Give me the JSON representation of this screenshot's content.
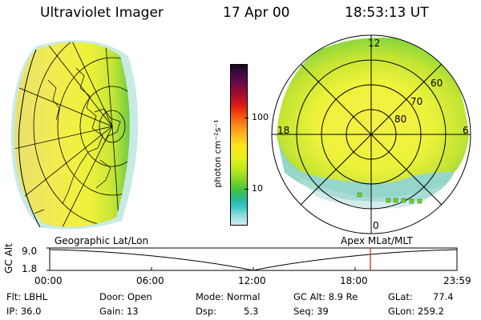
{
  "header": {
    "title": "Ultraviolet Imager",
    "date": "17 Apr 00",
    "time": "18:53:13 UT"
  },
  "geo_panel": {
    "label": "Geographic Lat/Lon"
  },
  "polar_panel": {
    "label": "Apex MLat/MLT",
    "mlt_labels": {
      "top": "12",
      "left": "18",
      "right": "6",
      "bottom": "0"
    },
    "lat_labels": [
      "60",
      "70",
      "80"
    ]
  },
  "colorbar": {
    "unit_label": "photon cm⁻²s⁻¹",
    "ticks": [
      "100",
      "10"
    ],
    "colors_top_to_bottom": [
      "#1a0820",
      "#3a0a40",
      "#5e0a48",
      "#8a0a3a",
      "#b0102a",
      "#d81a1a",
      "#f04010",
      "#f87818",
      "#fcaa20",
      "#fce21c",
      "#e8f21a",
      "#b8e61e",
      "#80d62c",
      "#46c43a",
      "#2bb898",
      "#38c8c8",
      "#8edcdc",
      "#d4ecec"
    ]
  },
  "timeline": {
    "axis_label": "GC Alt",
    "y_ticks": [
      "9.0",
      "1.8"
    ],
    "x_ticks": [
      "00:00",
      "06:00",
      "12:00",
      "18:00",
      "23:59"
    ],
    "marker_time": "18:53",
    "marker_color": "#cc2222"
  },
  "info": {
    "row1": [
      "Flt: LBHL",
      "Door: Open",
      "Mode: Normal",
      "GC Alt: 8.9 Re",
      "GLat:",
      "77.4"
    ],
    "row2": [
      "IP: 36.0",
      "Gain: 13",
      "Dsp:",
      "5.3",
      "Seq: 39",
      "GLon: 259.2"
    ]
  }
}
